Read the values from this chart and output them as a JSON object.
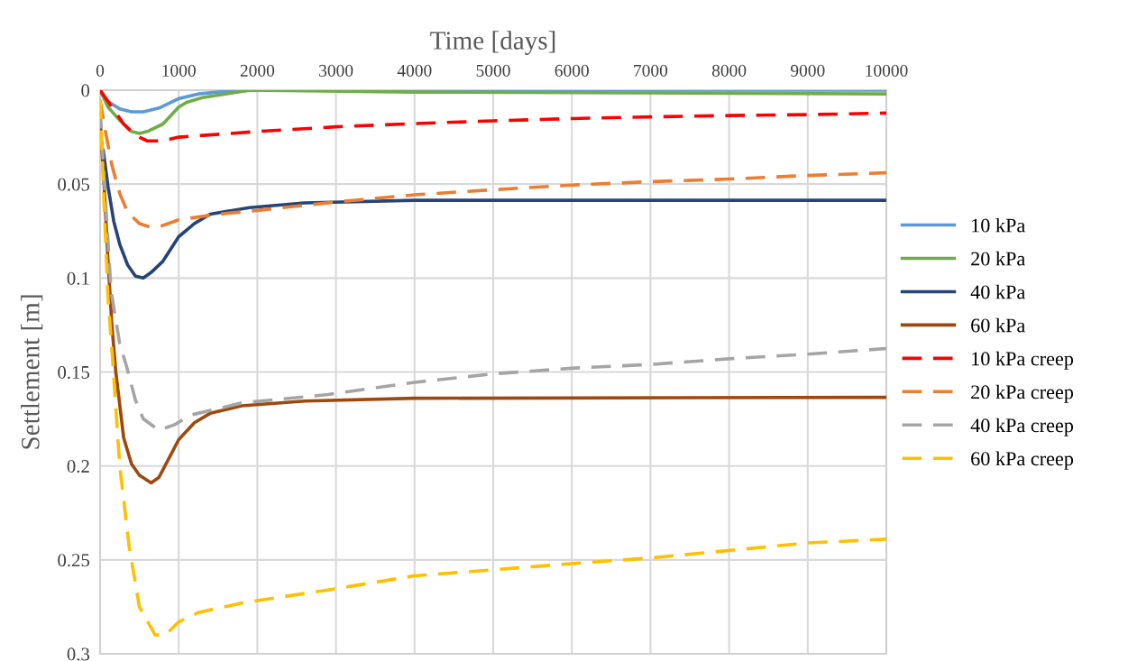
{
  "chart_data": {
    "type": "line",
    "xlabel": "Time [days]",
    "ylabel": "Settlement [m]",
    "xlim": [
      0,
      10000
    ],
    "xticks": [
      0,
      1000,
      2000,
      3000,
      4000,
      5000,
      6000,
      7000,
      8000,
      9000,
      10000
    ],
    "ylim": [
      0.3,
      0
    ],
    "yticks": [
      0,
      0.05,
      0.1,
      0.15,
      0.2,
      0.25,
      0.3
    ],
    "grid": true,
    "legend": "right",
    "marker": "none",
    "series": [
      {
        "name": "10 kPa",
        "color": "#5b9bd5",
        "line_style": "solid",
        "x": [
          0,
          100,
          250,
          400,
          550,
          750,
          1000,
          1250,
          1500,
          2000,
          4000,
          10000
        ],
        "values": [
          0,
          0.006,
          0.01,
          0.0115,
          0.0115,
          0.0095,
          0.0045,
          0.002,
          0.001,
          0,
          0,
          0
        ]
      },
      {
        "name": "20 kPa",
        "color": "#70ad47",
        "line_style": "solid",
        "x": [
          0,
          100,
          250,
          400,
          500,
          600,
          800,
          1000,
          1100,
          1300,
          1600,
          1900,
          4000,
          10000
        ],
        "values": [
          0,
          0.009,
          0.016,
          0.022,
          0.023,
          0.022,
          0.018,
          0.009,
          0.0065,
          0.004,
          0.002,
          0,
          0.001,
          0.002
        ]
      },
      {
        "name": "40 kPa",
        "color": "#264478",
        "line_style": "solid",
        "x": [
          40,
          100,
          175,
          250,
          350,
          450,
          550,
          650,
          800,
          1000,
          1200,
          1400,
          1900,
          2600,
          4000,
          10000
        ],
        "values": [
          0.032,
          0.051,
          0.07,
          0.082,
          0.093,
          0.099,
          0.1,
          0.097,
          0.091,
          0.078,
          0.071,
          0.066,
          0.0625,
          0.06,
          0.0586,
          0.0586
        ]
      },
      {
        "name": "60 kPa",
        "color": "#9e480e",
        "line_style": "solid",
        "x": [
          0,
          50,
          100,
          150,
          200,
          300,
          400,
          500,
          650,
          750,
          850,
          1000,
          1200,
          1400,
          1800,
          2600,
          4000,
          10000
        ],
        "values": [
          0.015,
          0.05,
          0.09,
          0.125,
          0.15,
          0.185,
          0.199,
          0.205,
          0.209,
          0.206,
          0.198,
          0.186,
          0.177,
          0.172,
          0.168,
          0.1655,
          0.164,
          0.1635
        ]
      },
      {
        "name": "10 kPa creep",
        "color": "#ff0000",
        "line_style": "dashed",
        "x": [
          0,
          150,
          300,
          450,
          600,
          800,
          1000,
          2000,
          3000,
          4000,
          5000,
          6000,
          7000,
          8000,
          9000,
          10000
        ],
        "values": [
          0,
          0.009,
          0.018,
          0.024,
          0.027,
          0.027,
          0.025,
          0.022,
          0.0195,
          0.0178,
          0.0163,
          0.0151,
          0.0142,
          0.0135,
          0.013,
          0.0122
        ]
      },
      {
        "name": "20 kPa creep",
        "color": "#ed7d31",
        "line_style": "dashed",
        "x": [
          0,
          50,
          150,
          250,
          350,
          500,
          650,
          800,
          1000,
          1500,
          2000,
          3000,
          4000,
          5000,
          6000,
          7000,
          8000,
          9000,
          10000
        ],
        "values": [
          0.005,
          0.018,
          0.04,
          0.055,
          0.065,
          0.071,
          0.073,
          0.072,
          0.069,
          0.066,
          0.064,
          0.0595,
          0.0557,
          0.053,
          0.0505,
          0.0487,
          0.0473,
          0.0454,
          0.044
        ]
      },
      {
        "name": "40 kPa creep",
        "color": "#a5a5a5",
        "line_style": "dashed",
        "x": [
          0,
          70,
          140,
          250,
          330,
          450,
          550,
          750,
          950,
          1150,
          1800,
          2900,
          4000,
          5000,
          6000,
          7000,
          8000,
          9000,
          10000
        ],
        "values": [
          0.01,
          0.06,
          0.107,
          0.135,
          0.146,
          0.165,
          0.175,
          0.181,
          0.178,
          0.173,
          0.1665,
          0.162,
          0.1555,
          0.151,
          0.148,
          0.146,
          0.143,
          0.1405,
          0.1375
        ]
      },
      {
        "name": "60 kPa creep",
        "color": "#ffc000",
        "line_style": "dashed",
        "x": [
          0,
          50,
          100,
          160,
          250,
          370,
          500,
          700,
          830,
          1000,
          1250,
          1800,
          2900,
          4000,
          5000,
          6000,
          7000,
          8000,
          9000,
          10000
        ],
        "values": [
          0.005,
          0.06,
          0.11,
          0.144,
          0.2,
          0.243,
          0.275,
          0.29,
          0.29,
          0.283,
          0.278,
          0.273,
          0.266,
          0.2585,
          0.2553,
          0.252,
          0.249,
          0.245,
          0.241,
          0.239
        ]
      }
    ]
  }
}
